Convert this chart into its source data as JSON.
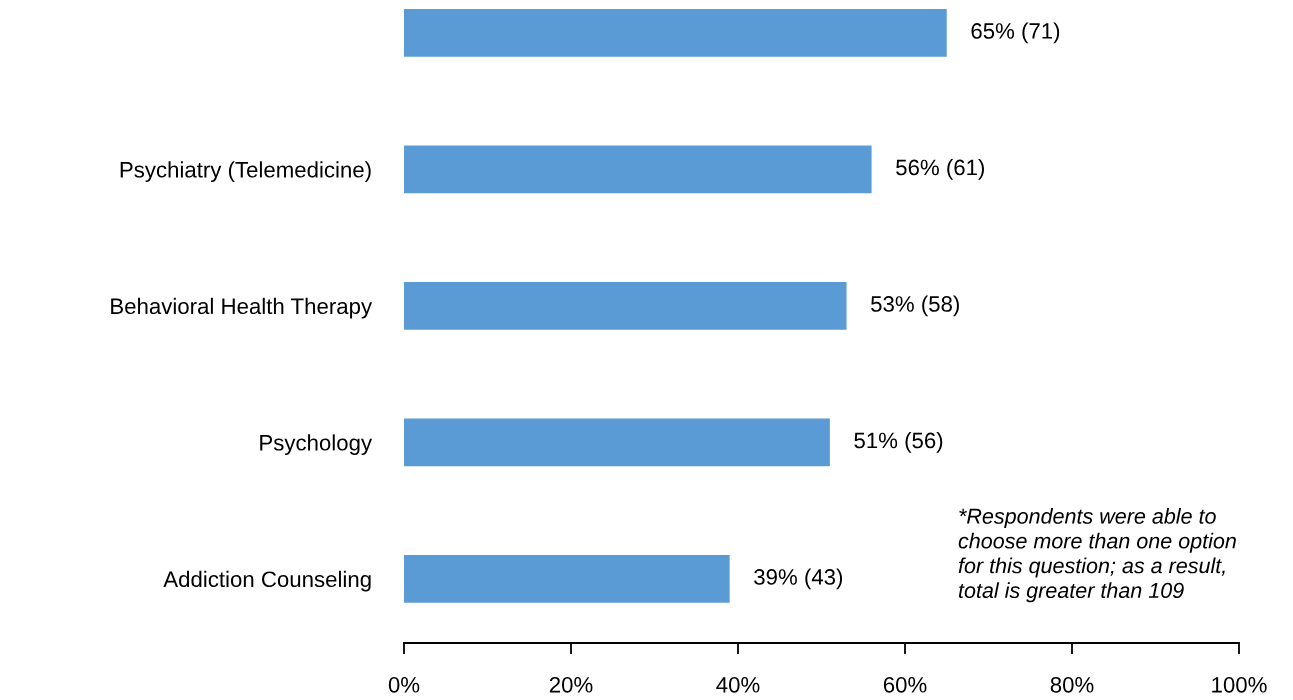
{
  "chart_data": {
    "type": "bar",
    "orientation": "horizontal",
    "categories": [
      null,
      "Psychiatry (Telemedicine)",
      "Behavioral Health Therapy",
      "Psychology",
      "Addiction Counseling"
    ],
    "values": [
      65,
      56,
      53,
      51,
      39
    ],
    "value_labels": [
      "65% (71)",
      "56% (61)",
      "53% (58)",
      "51% (56)",
      "39% (43)"
    ],
    "color": "#5b9bd5",
    "xlim": [
      0,
      100
    ],
    "xticks": [
      {
        "value": 0,
        "label": "0%"
      },
      {
        "value": 20,
        "label": "20%"
      },
      {
        "value": 40,
        "label": "40%"
      },
      {
        "value": 60,
        "label": "60%"
      },
      {
        "value": 80,
        "label": "80%"
      },
      {
        "value": 100,
        "label": "100%"
      }
    ],
    "annotations": [
      "*Respondents were able to\nchoose more than one option\nfor this question; as a result,\ntotal is greater than 109"
    ]
  }
}
